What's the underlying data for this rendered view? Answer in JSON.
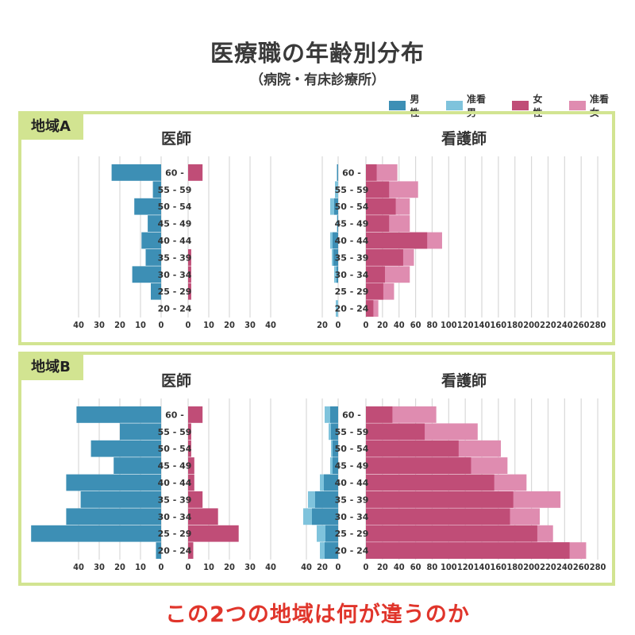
{
  "header": {
    "title": "医療職の年齢別分布",
    "subtitle": "（病院・有床診療所）"
  },
  "legend": [
    {
      "label": "男性",
      "color": "#3d8fb5"
    },
    {
      "label": "准看男",
      "color": "#7fc3dc"
    },
    {
      "label": "女性",
      "color": "#c04d77"
    },
    {
      "label": "准看女",
      "color": "#df8cb0"
    }
  ],
  "regions": [
    {
      "label": "地域A",
      "physician_title": "医師",
      "nurse_title": "看護師"
    },
    {
      "label": "地域B",
      "physician_title": "医師",
      "nurse_title": "看護師"
    }
  ],
  "caption": "この2つの地域は何が違うのか",
  "chart_data": [
    {
      "type": "bar",
      "title": "地域A 医師",
      "orientation": "horizontal-pyramid",
      "categories": [
        "60 -",
        "55 - 59",
        "50 - 54",
        "45 - 49",
        "40 - 44",
        "35 - 39",
        "30 - 34",
        "25 - 29",
        "20 - 24"
      ],
      "series": [
        {
          "name": "男性",
          "side": "left",
          "values": [
            24,
            4,
            13,
            6.5,
            9.5,
            7.5,
            14,
            5,
            0
          ]
        },
        {
          "name": "女性",
          "side": "right",
          "values": [
            7,
            0,
            0,
            0,
            0,
            1.5,
            1.5,
            1.5,
            0
          ]
        }
      ],
      "left_ticks": [
        40,
        30,
        20,
        10,
        0
      ],
      "right_ticks": [
        0,
        10,
        20,
        30,
        40
      ],
      "xlim": [
        0,
        40
      ]
    },
    {
      "type": "bar",
      "title": "地域A 看護師",
      "orientation": "horizontal-pyramid",
      "categories": [
        "60 -",
        "55 - 59",
        "50 - 54",
        "45 - 49",
        "40 - 44",
        "35 - 39",
        "30 - 34",
        "25 - 29",
        "20 - 24"
      ],
      "series": [
        {
          "name": "男性",
          "side": "left",
          "values": [
            1.5,
            0,
            5,
            1,
            7,
            6,
            2,
            0,
            0
          ]
        },
        {
          "name": "准看男",
          "side": "left",
          "stack_total": [
            1.5,
            4,
            10,
            1.5,
            10,
            8,
            5,
            0,
            3
          ]
        },
        {
          "name": "女性",
          "side": "right",
          "values": [
            13,
            28,
            36,
            28,
            74,
            45,
            23,
            21,
            9
          ]
        },
        {
          "name": "准看女",
          "side": "right",
          "stack_total": [
            38,
            63,
            53,
            53,
            92,
            58,
            53,
            34,
            15
          ]
        }
      ],
      "left_ticks": [
        20,
        0
      ],
      "right_ticks": [
        0,
        20,
        40,
        60,
        80,
        100,
        120,
        140,
        160,
        180,
        200,
        220,
        240,
        260,
        280
      ],
      "xlim_left": [
        0,
        20
      ],
      "xlim_right": [
        0,
        280
      ]
    },
    {
      "type": "bar",
      "title": "地域B 医師",
      "orientation": "horizontal-pyramid",
      "categories": [
        "60 -",
        "55 - 59",
        "50 - 54",
        "45 - 49",
        "40 - 44",
        "35 - 39",
        "30 - 34",
        "25 - 29",
        "20 - 24"
      ],
      "series": [
        {
          "name": "男性",
          "side": "left",
          "values": [
            41,
            20,
            34,
            23,
            46,
            39,
            46,
            63,
            2.5
          ]
        },
        {
          "name": "女性",
          "side": "right",
          "values": [
            7,
            1.5,
            1.5,
            3,
            3,
            7,
            14.5,
            24.5,
            2.5
          ]
        }
      ],
      "left_ticks": [
        40,
        30,
        20,
        10,
        0
      ],
      "right_ticks": [
        0,
        10,
        20,
        30,
        40
      ],
      "xlim": [
        0,
        40
      ]
    },
    {
      "type": "bar",
      "title": "地域B 看護師",
      "orientation": "horizontal-pyramid",
      "categories": [
        "60 -",
        "55 - 59",
        "50 - 54",
        "45 - 49",
        "40 - 44",
        "35 - 39",
        "30 - 34",
        "25 - 29",
        "20 - 24"
      ],
      "series": [
        {
          "name": "男性",
          "side": "left",
          "values": [
            10,
            9,
            7,
            7,
            18,
            29,
            33,
            16,
            17
          ]
        },
        {
          "name": "准看男",
          "side": "left",
          "stack_total": [
            17,
            12,
            9,
            10,
            23,
            38,
            44,
            27,
            23
          ]
        },
        {
          "name": "女性",
          "side": "right",
          "values": [
            32,
            71,
            112,
            127,
            155,
            178,
            174,
            207,
            246
          ]
        },
        {
          "name": "准看女",
          "side": "right",
          "stack_total": [
            85,
            135,
            163,
            171,
            194,
            235,
            210,
            226,
            266
          ]
        }
      ],
      "left_ticks": [
        40,
        20,
        0
      ],
      "right_ticks": [
        0,
        20,
        40,
        60,
        80,
        100,
        120,
        140,
        160,
        180,
        200,
        220,
        240,
        260,
        280
      ],
      "xlim_left": [
        0,
        40
      ],
      "xlim_right": [
        0,
        280
      ]
    }
  ]
}
